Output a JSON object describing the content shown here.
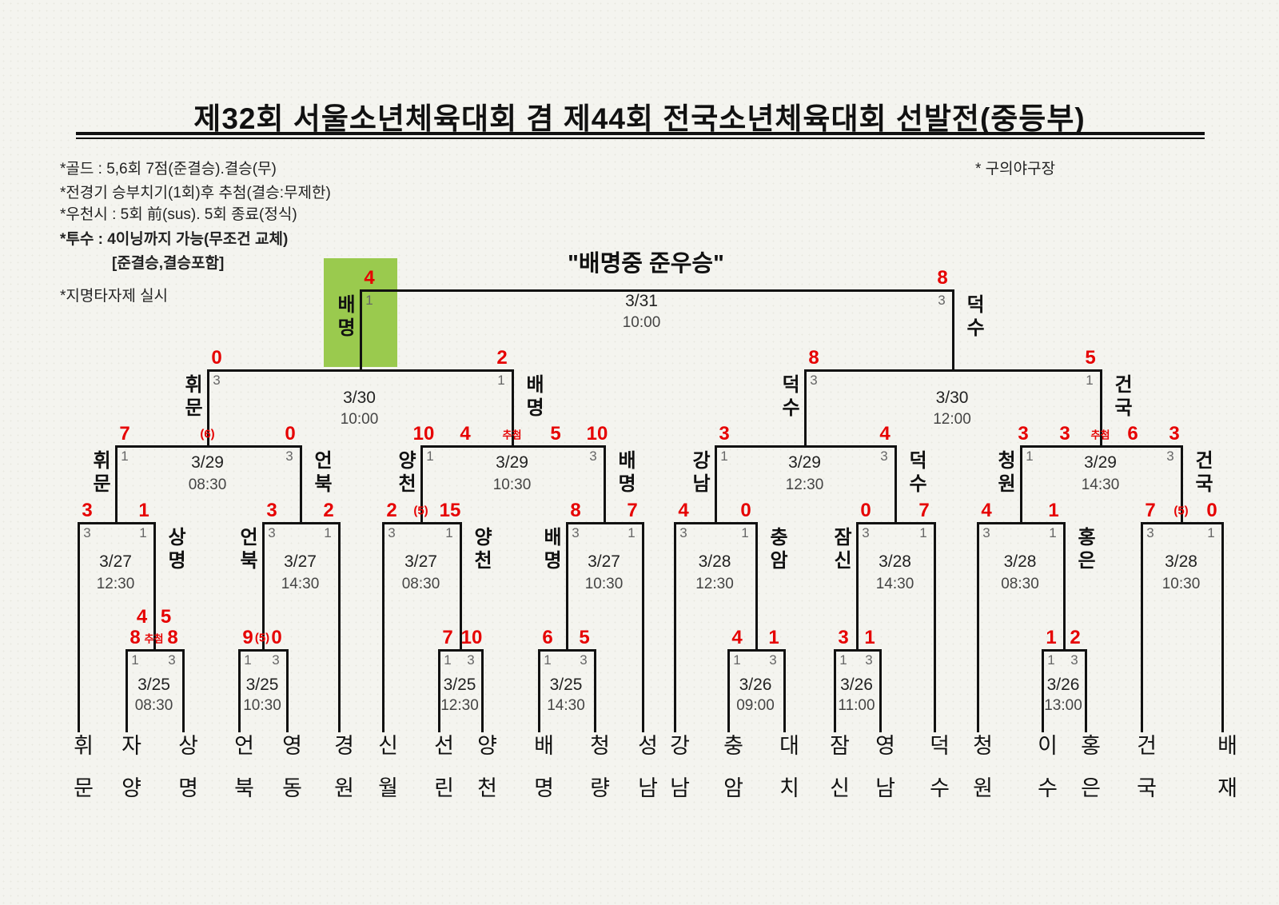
{
  "title": "제32회 서울소년체육대회 겸 제44회 전국소년체육대회 선발전(중등부)",
  "venue_note": "* 구의야구장",
  "caption": "\"배명중 준우승\"",
  "notes": [
    {
      "text": "*골드 : 5,6회 7점(준결승).결승(무)",
      "bold": false,
      "indent": false
    },
    {
      "text": "*전경기 승부치기(1회)후 추첨(결승:무제한)",
      "bold": false,
      "indent": false
    },
    {
      "text": "*우천시 : 5회 前(sus). 5회 종료(정식)",
      "bold": false,
      "indent": false
    },
    {
      "text": "*투수 : 4이닝까지 가능(무조건 교체)",
      "bold": true,
      "indent": false
    },
    {
      "text": "[준결승,결승포함]",
      "bold": true,
      "indent": true
    },
    {
      "text": "*지명타자제 실시",
      "bold": false,
      "indent": false
    }
  ],
  "colors": {
    "score_red": "#e60000",
    "highlight_green": "#9aca4e",
    "line_black": "#111111",
    "dugout_gray": "#666666"
  },
  "leaves": [
    "휘문",
    "자양",
    "상명",
    "언북",
    "영동",
    "경원",
    "신월",
    "선린",
    "양천",
    "배명",
    "청량",
    "성남",
    "강남",
    "충암",
    "대치",
    "잠신",
    "영남",
    "덕수",
    "청원",
    "이수",
    "홍은",
    "건국",
    "배재"
  ],
  "matches": [
    {
      "id": "fr1",
      "date": "3/25",
      "time": "08:30",
      "annotation": "추첨",
      "extra_scores": [
        "4",
        "5"
      ],
      "left": {
        "scores": [
          "8"
        ],
        "dugout": "1"
      },
      "right": {
        "scores": [
          "8"
        ],
        "dugout": "3"
      }
    },
    {
      "id": "fr2",
      "date": "3/25",
      "time": "10:30",
      "annotation": "(5)",
      "left": {
        "scores": [
          "9"
        ],
        "dugout": "1"
      },
      "right": {
        "scores": [
          "0"
        ],
        "dugout": "3"
      }
    },
    {
      "id": "fr3",
      "date": "3/25",
      "time": "12:30",
      "left": {
        "scores": [
          "7"
        ],
        "dugout": "1"
      },
      "right": {
        "scores": [
          "10"
        ],
        "dugout": "3"
      }
    },
    {
      "id": "fr4",
      "date": "3/25",
      "time": "14:30",
      "left": {
        "scores": [
          "6"
        ],
        "dugout": "1"
      },
      "right": {
        "scores": [
          "5"
        ],
        "dugout": "3"
      }
    },
    {
      "id": "fr5",
      "date": "3/26",
      "time": "09:00",
      "left": {
        "scores": [
          "4"
        ],
        "dugout": "1"
      },
      "right": {
        "scores": [
          "1"
        ],
        "dugout": "3"
      }
    },
    {
      "id": "fr6",
      "date": "3/26",
      "time": "11:00",
      "left": {
        "scores": [
          "3"
        ],
        "dugout": "1"
      },
      "right": {
        "scores": [
          "1"
        ],
        "dugout": "3"
      }
    },
    {
      "id": "fr7",
      "date": "3/26",
      "time": "13:00",
      "left": {
        "scores": [
          "1"
        ],
        "dugout": "1"
      },
      "right": {
        "scores": [
          "2"
        ],
        "dugout": "3"
      }
    },
    {
      "id": "r16_1",
      "date": "3/27",
      "time": "12:30",
      "left": {
        "scores": [
          "3"
        ],
        "dugout": "3"
      },
      "right": {
        "scores": [
          "1"
        ],
        "dugout": "1",
        "label": "상명"
      }
    },
    {
      "id": "r16_2",
      "date": "3/27",
      "time": "14:30",
      "left": {
        "scores": [
          "3"
        ],
        "dugout": "3",
        "label": "언북"
      },
      "right": {
        "scores": [
          "2"
        ],
        "dugout": "1"
      }
    },
    {
      "id": "r16_3",
      "date": "3/27",
      "time": "08:30",
      "annotation": "(5)",
      "left": {
        "scores": [
          "2"
        ],
        "dugout": "3"
      },
      "right": {
        "scores": [
          "15"
        ],
        "dugout": "1",
        "label": "양천"
      }
    },
    {
      "id": "r16_4",
      "date": "3/27",
      "time": "10:30",
      "left": {
        "scores": [
          "8"
        ],
        "dugout": "3",
        "label": "배명"
      },
      "right": {
        "scores": [
          "7"
        ],
        "dugout": "1"
      }
    },
    {
      "id": "r16_5",
      "date": "3/28",
      "time": "12:30",
      "left": {
        "scores": [
          "4"
        ],
        "dugout": "3"
      },
      "right": {
        "scores": [
          "0"
        ],
        "dugout": "1",
        "label": "충암"
      }
    },
    {
      "id": "r16_6",
      "date": "3/28",
      "time": "14:30",
      "left": {
        "scores": [
          "0"
        ],
        "dugout": "3",
        "label": "잠신"
      },
      "right": {
        "scores": [
          "7"
        ],
        "dugout": "1"
      }
    },
    {
      "id": "r16_7",
      "date": "3/28",
      "time": "08:30",
      "left": {
        "scores": [
          "4"
        ],
        "dugout": "3"
      },
      "right": {
        "scores": [
          "1"
        ],
        "dugout": "1",
        "label": "홍은"
      }
    },
    {
      "id": "r16_8",
      "date": "3/28",
      "time": "10:30",
      "annotation": "(5)",
      "left": {
        "scores": [
          "7"
        ],
        "dugout": "3"
      },
      "right": {
        "scores": [
          "0"
        ],
        "dugout": "1"
      }
    },
    {
      "id": "qf1",
      "date": "3/29",
      "time": "08:30",
      "annotation": "(6)",
      "left": {
        "scores": [
          "7"
        ],
        "dugout": "1",
        "label": "휘문"
      },
      "right": {
        "scores": [
          "0"
        ],
        "dugout": "3",
        "label": "언북"
      }
    },
    {
      "id": "qf2",
      "date": "3/29",
      "time": "10:30",
      "annotation": "추첨",
      "left": {
        "scores": [
          "10",
          "4"
        ],
        "dugout": "1",
        "label": "양천"
      },
      "right": {
        "scores": [
          "5",
          "10"
        ],
        "dugout": "3",
        "label": "배명"
      }
    },
    {
      "id": "qf3",
      "date": "3/29",
      "time": "12:30",
      "left": {
        "scores": [
          "3"
        ],
        "dugout": "1",
        "label": "강남"
      },
      "right": {
        "scores": [
          "4"
        ],
        "dugout": "3",
        "label": "덕수"
      }
    },
    {
      "id": "qf4",
      "date": "3/29",
      "time": "14:30",
      "annotation": "추첨",
      "left": {
        "scores": [
          "3",
          "3"
        ],
        "dugout": "1",
        "label": "청원"
      },
      "right": {
        "scores": [
          "6",
          "3"
        ],
        "dugout": "3",
        "label": "건국"
      }
    },
    {
      "id": "sf1",
      "date": "3/30",
      "time": "10:00",
      "left": {
        "scores": [
          "0"
        ],
        "dugout": "3",
        "label": "휘문"
      },
      "right": {
        "scores": [
          "2"
        ],
        "dugout": "1",
        "label": "배명"
      }
    },
    {
      "id": "sf2",
      "date": "3/30",
      "time": "12:00",
      "left": {
        "scores": [
          "8"
        ],
        "dugout": "3",
        "label": "덕수"
      },
      "right": {
        "scores": [
          "5"
        ],
        "dugout": "1",
        "label": "건국"
      }
    },
    {
      "id": "final",
      "date": "3/31",
      "time": "10:00",
      "left": {
        "scores": [
          "4"
        ],
        "dugout": "1",
        "label": "배명",
        "highlight": true
      },
      "right": {
        "scores": [
          "8"
        ],
        "dugout": "3",
        "label": "덕수"
      }
    }
  ]
}
